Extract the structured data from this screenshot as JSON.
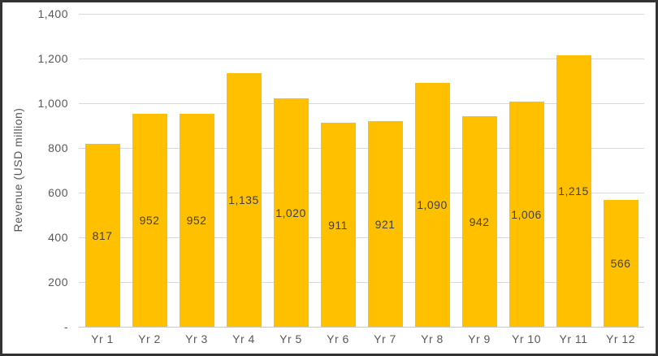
{
  "figure": {
    "background": "#FFFFFF",
    "border_color": "#333333"
  },
  "chart_data": {
    "type": "bar",
    "title": "",
    "xlabel": "",
    "ylabel": "Revenue (USD million)",
    "categories": [
      "Yr 1",
      "Yr 2",
      "Yr 3",
      "Yr 4",
      "Yr 5",
      "Yr 6",
      "Yr 7",
      "Yr 8",
      "Yr 9",
      "Yr 10",
      "Yr 11",
      "Yr 12"
    ],
    "values": [
      817,
      952,
      952,
      1135,
      1020,
      911,
      921,
      1090,
      942,
      1006,
      1215,
      566
    ],
    "value_labels": [
      "817",
      "952",
      "952",
      "1,135",
      "1,020",
      "911",
      "921",
      "1,090",
      "942",
      "1,006",
      "1,215",
      "566"
    ],
    "ylim": [
      0,
      1400
    ],
    "y_ticks": [
      {
        "value": 1400,
        "label": "1,400"
      },
      {
        "value": 1200,
        "label": "1,200"
      },
      {
        "value": 1000,
        "label": "1,000"
      },
      {
        "value": 800,
        "label": "800"
      },
      {
        "value": 600,
        "label": "600"
      },
      {
        "value": 400,
        "label": "400"
      },
      {
        "value": 200,
        "label": "200"
      },
      {
        "value": 0,
        "label": "-"
      }
    ],
    "grid": true,
    "legend": "none",
    "data_label_position": "center",
    "colors": {
      "bar": "#FFC000",
      "data_label": "#404040",
      "axis_text": "#595959",
      "gridline": "#D9D9D9",
      "axis_line": "#C9C9C9"
    }
  }
}
